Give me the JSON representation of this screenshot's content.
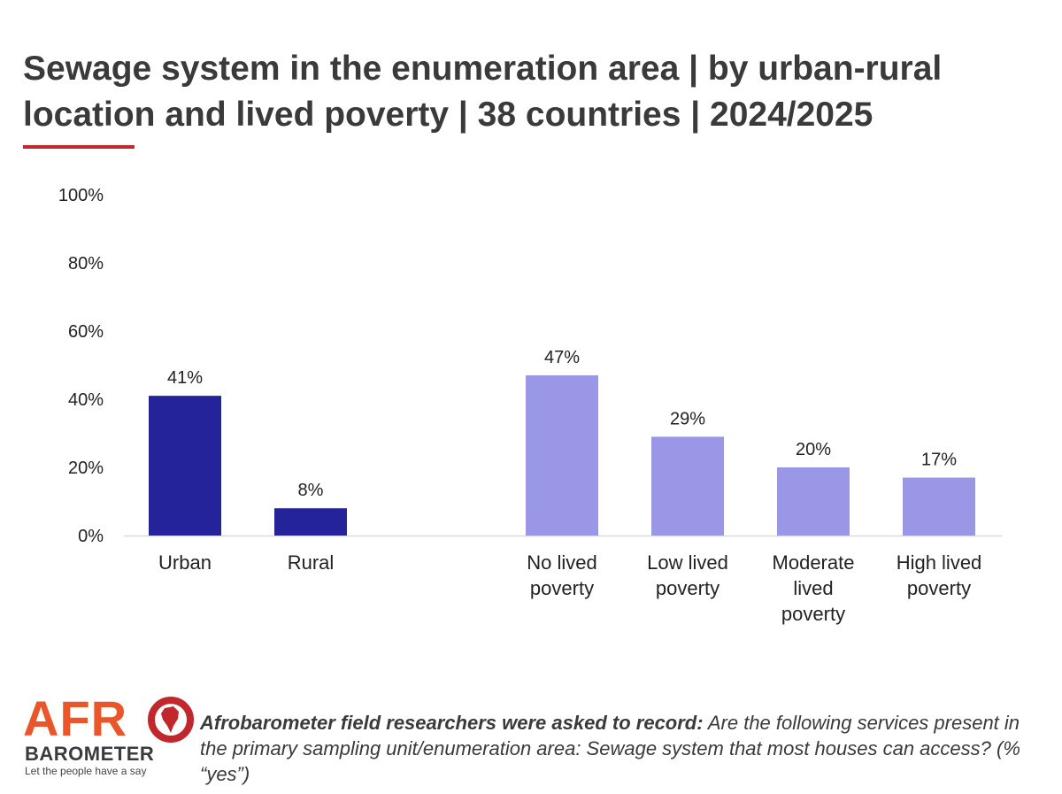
{
  "title": {
    "bold": "Sewage system in the enumeration area",
    "rest": " | by urban-rural location and lived poverty | 38 countries | 2024/2025"
  },
  "colors": {
    "accent": "#c0282d",
    "urban_rural_bar": "#25239a",
    "poverty_bar": "#9a98e6"
  },
  "chart_data": {
    "type": "bar",
    "categories": [
      "Urban",
      "Rural",
      "No lived poverty",
      "Low lived poverty",
      "Moderate lived poverty",
      "High lived poverty"
    ],
    "category_lines": [
      [
        "Urban"
      ],
      [
        "Rural"
      ],
      [
        "No lived",
        "poverty"
      ],
      [
        "Low lived",
        "poverty"
      ],
      [
        "Moderate",
        "lived",
        "poverty"
      ],
      [
        "High lived",
        "poverty"
      ]
    ],
    "values": [
      41,
      8,
      47,
      29,
      20,
      17
    ],
    "value_labels": [
      "41%",
      "8%",
      "47%",
      "29%",
      "20%",
      "17%"
    ],
    "groups": [
      "urban_rural",
      "urban_rural",
      "poverty",
      "poverty",
      "poverty",
      "poverty"
    ],
    "y_ticks": [
      "0%",
      "20%",
      "40%",
      "60%",
      "80%",
      "100%"
    ],
    "ylim": [
      0,
      100
    ],
    "grid": false
  },
  "logo": {
    "afro": "AFR",
    "barometer": "BAROMETER",
    "tagline": "Let the people have a say"
  },
  "note": {
    "lead": "Afrobarometer field researchers were asked to record:",
    "text": " Are the following services present in the primary sampling unit/enumeration area: Sewage system that most houses can access? (% “yes”)"
  }
}
